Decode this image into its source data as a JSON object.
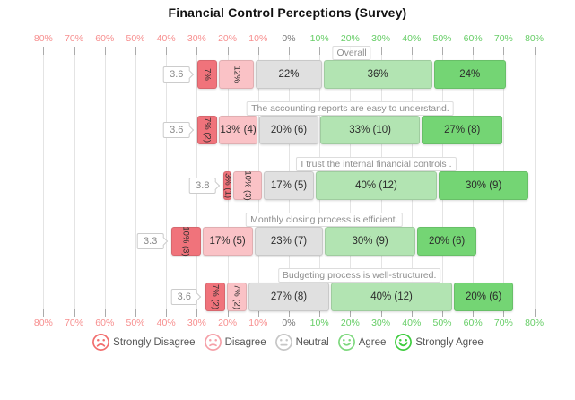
{
  "title": "Financial Control Perceptions (Survey)",
  "chart_data": {
    "type": "bar",
    "subtype": "diverging-stacked-horizontal-likert",
    "title": "Financial Control Perceptions (Survey)",
    "categories": [
      "Overall",
      "The accounting reports are easy to understand.",
      "I trust the internal financial controls .",
      "Monthly closing process is efficient.",
      "Budgeting process is well-structured."
    ],
    "averages": [
      "3.6",
      "3.6",
      "3.8",
      "3.3",
      "3.6"
    ],
    "series": [
      {
        "name": "Strongly Disagree",
        "values": [
          7,
          7,
          3,
          10,
          7
        ],
        "labels": [
          "7%",
          "7% (2)",
          "3% (1)",
          "10% (3)",
          "7% (2)"
        ],
        "color": "#F0737B",
        "legend_icon": "frown-face-icon",
        "legend_color": "#F26D6D"
      },
      {
        "name": "Disagree",
        "values": [
          12,
          13,
          10,
          17,
          7
        ],
        "labels": [
          "12%",
          "13% (4)",
          "10% (3)",
          "17% (5)",
          "7% (2)"
        ],
        "color": "#FAC2C6",
        "legend_icon": "sad-face-icon",
        "legend_color": "#F5A0A8"
      },
      {
        "name": "Neutral",
        "values": [
          22,
          20,
          17,
          23,
          27
        ],
        "labels": [
          "22%",
          "20% (6)",
          "17% (5)",
          "23% (7)",
          "27% (8)"
        ],
        "color": "#E0E0E0",
        "legend_icon": "neutral-face-icon",
        "legend_color": "#C6C6C6"
      },
      {
        "name": "Agree",
        "values": [
          36,
          33,
          40,
          30,
          40
        ],
        "labels": [
          "36%",
          "33% (10)",
          "40% (12)",
          "30% (9)",
          "40% (12)"
        ],
        "color": "#B2E4B2",
        "legend_icon": "smile-face-icon",
        "legend_color": "#7ED87E"
      },
      {
        "name": "Strongly Agree",
        "values": [
          24,
          27,
          30,
          20,
          20
        ],
        "labels": [
          "24%",
          "27% (8)",
          "30% (9)",
          "20% (6)",
          "20% (6)"
        ],
        "color": "#74D574",
        "legend_icon": "grin-face-icon",
        "legend_color": "#3ECC3E"
      }
    ],
    "x_axis": {
      "range": [
        -80,
        80
      ],
      "tick_step": 10,
      "tick_labels": [
        "80%",
        "70%",
        "60%",
        "50%",
        "40%",
        "30%",
        "20%",
        "10%",
        "0%",
        "10%",
        "20%",
        "30%",
        "40%",
        "50%",
        "60%",
        "70%",
        "80%"
      ],
      "negative_color": "#F78F8F",
      "positive_color": "#66CD66",
      "zero_color": "#777777",
      "grid": true,
      "mirrored_top_bottom": true
    },
    "legend_position": "bottom"
  }
}
